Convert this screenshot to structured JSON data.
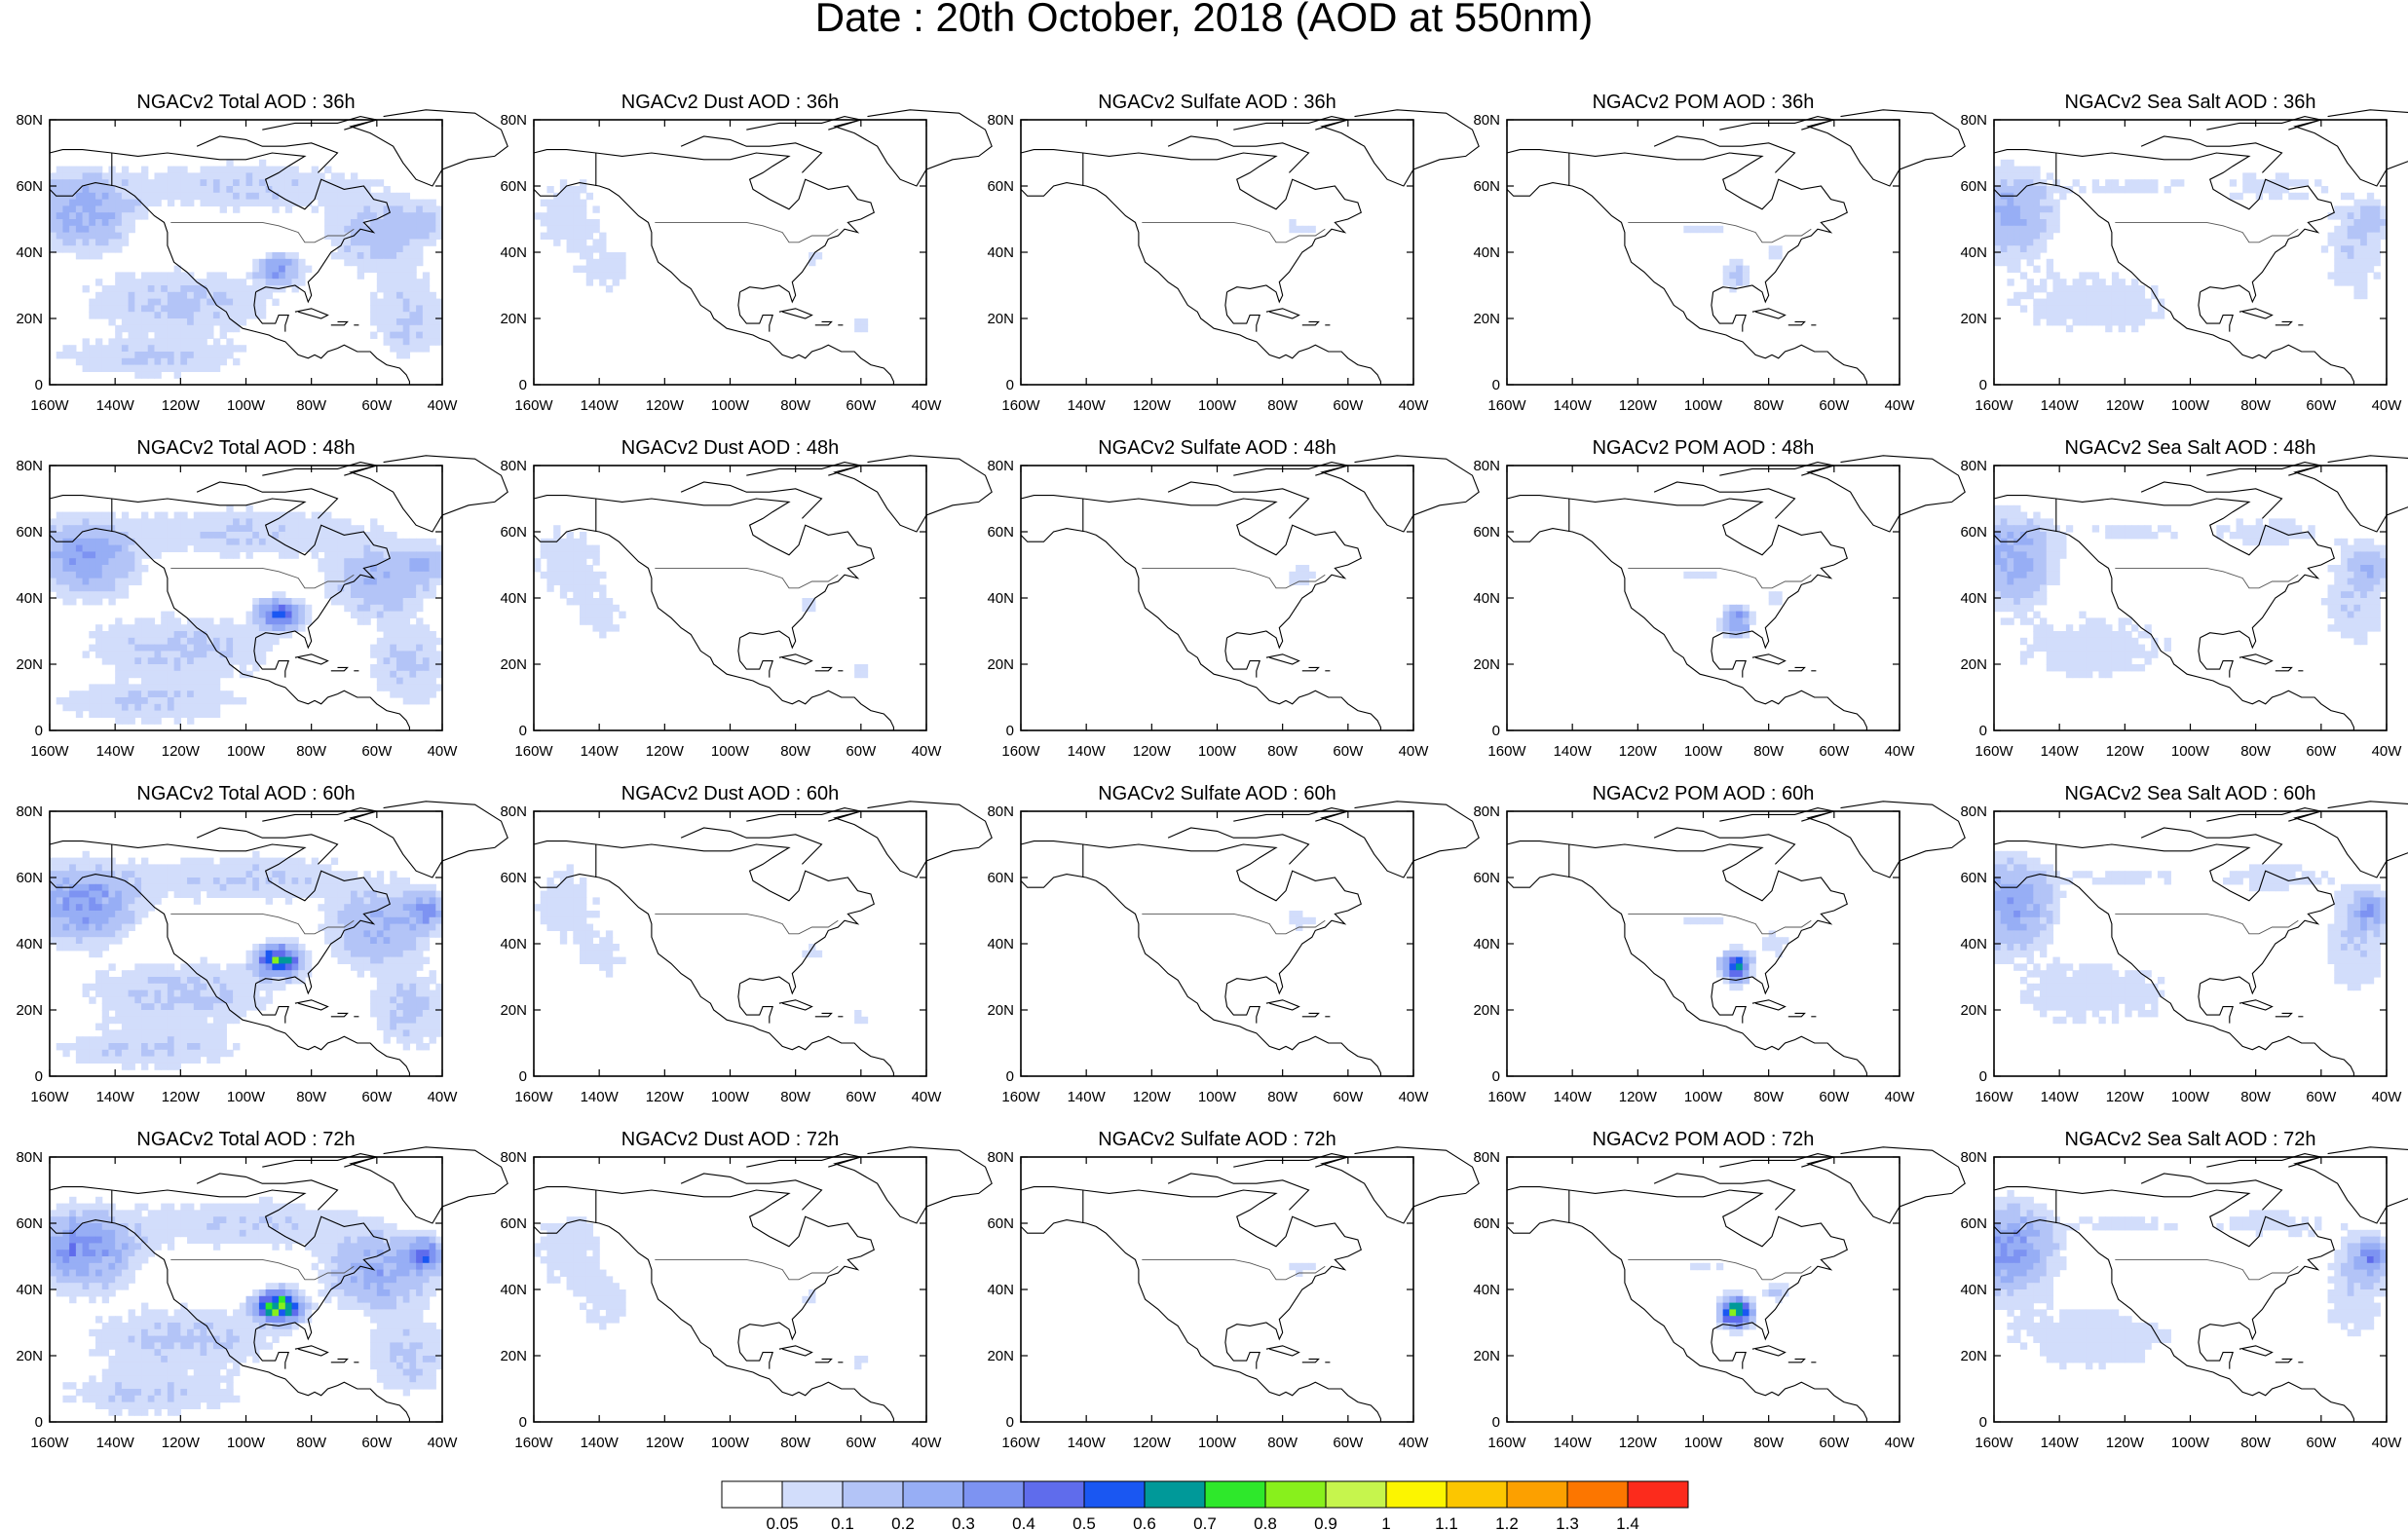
{
  "figure": {
    "title": "Date : 20th October, 2018 (AOD at 550nm)"
  },
  "map_axes": {
    "x_tick_labels": [
      "160W",
      "140W",
      "120W",
      "100W",
      "80W",
      "60W",
      "40W"
    ],
    "y_tick_labels": [
      "0",
      "20N",
      "40N",
      "60N",
      "80N"
    ],
    "lon_range": [
      -160,
      -40
    ],
    "lat_range": [
      0,
      80
    ]
  },
  "panels": [
    [
      {
        "title": "NGACv2 Total AOD : 36h",
        "species": "total",
        "hour": 36
      },
      {
        "title": "NGACv2 Dust AOD : 36h",
        "species": "dust",
        "hour": 36
      },
      {
        "title": "NGACv2 Sulfate AOD : 36h",
        "species": "sulfate",
        "hour": 36
      },
      {
        "title": "NGACv2 POM AOD : 36h",
        "species": "pom",
        "hour": 36
      },
      {
        "title": "NGACv2 Sea Salt AOD : 36h",
        "species": "seasalt",
        "hour": 36
      }
    ],
    [
      {
        "title": "NGACv2 Total AOD : 48h",
        "species": "total",
        "hour": 48
      },
      {
        "title": "NGACv2 Dust AOD : 48h",
        "species": "dust",
        "hour": 48
      },
      {
        "title": "NGACv2 Sulfate AOD : 48h",
        "species": "sulfate",
        "hour": 48
      },
      {
        "title": "NGACv2 POM AOD : 48h",
        "species": "pom",
        "hour": 48
      },
      {
        "title": "NGACv2 Sea Salt AOD : 48h",
        "species": "seasalt",
        "hour": 48
      }
    ],
    [
      {
        "title": "NGACv2 Total AOD : 60h",
        "species": "total",
        "hour": 60
      },
      {
        "title": "NGACv2 Dust AOD : 60h",
        "species": "dust",
        "hour": 60
      },
      {
        "title": "NGACv2 Sulfate AOD : 60h",
        "species": "sulfate",
        "hour": 60
      },
      {
        "title": "NGACv2 POM AOD : 60h",
        "species": "pom",
        "hour": 60
      },
      {
        "title": "NGACv2 Sea Salt AOD : 60h",
        "species": "seasalt",
        "hour": 60
      }
    ],
    [
      {
        "title": "NGACv2 Total AOD : 72h",
        "species": "total",
        "hour": 72
      },
      {
        "title": "NGACv2 Dust AOD : 72h",
        "species": "dust",
        "hour": 72
      },
      {
        "title": "NGACv2 Sulfate AOD : 72h",
        "species": "sulfate",
        "hour": 72
      },
      {
        "title": "NGACv2 POM AOD : 72h",
        "species": "pom",
        "hour": 72
      },
      {
        "title": "NGACv2 Sea Salt  AOD : 72h",
        "species": "seasalt",
        "hour": 72
      }
    ]
  ],
  "colorbar": {
    "colors": [
      "#ffffff",
      "#d2ddfb",
      "#b3c4f7",
      "#97aef5",
      "#7d93f2",
      "#5f6cec",
      "#1a57f2",
      "#009999",
      "#2ee82b",
      "#88f01c",
      "#c6f54d",
      "#fcf500",
      "#fcc600",
      "#fca000",
      "#fc7600",
      "#fc2b1c"
    ],
    "labels": [
      "0.05",
      "0.1",
      "0.2",
      "0.3",
      "0.4",
      "0.5",
      "0.6",
      "0.7",
      "0.8",
      "0.9",
      "1",
      "1.1",
      "1.2",
      "1.3",
      "1.4"
    ]
  }
}
